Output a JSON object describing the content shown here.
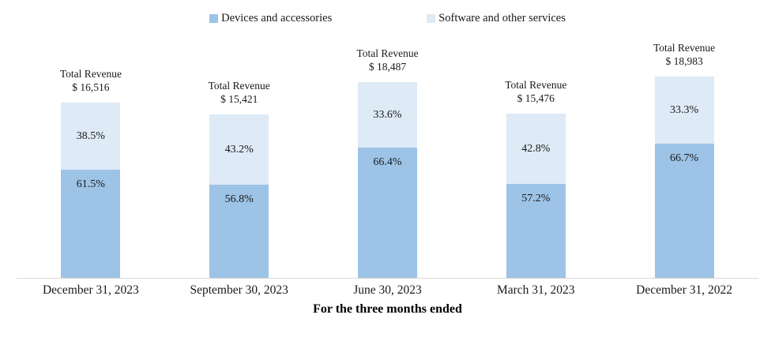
{
  "chart_data": {
    "type": "bar",
    "stacked": true,
    "stack_mode": "percent-labels-with-total-scaled-height",
    "xlabel": "For the three months ended",
    "ylabel": "",
    "grid": false,
    "legend_position": "top-center",
    "axis_line_color": "#d9d9d9",
    "categories": [
      "December 31, 2023",
      "September 30, 2023",
      "June 30, 2023",
      "March 31, 2023",
      "December 31, 2022"
    ],
    "totals": [
      16516,
      15421,
      18487,
      15476,
      18983
    ],
    "series": [
      {
        "name": "Devices and accessories",
        "color": "#9dc3e6",
        "values_pct": [
          61.5,
          56.8,
          66.4,
          57.2,
          66.7
        ]
      },
      {
        "name": "Software and other services",
        "color": "#deeaf6",
        "values_pct": [
          38.5,
          43.2,
          33.6,
          42.8,
          33.3
        ]
      }
    ]
  },
  "legend": {
    "items": [
      {
        "label": "Devices and accessories"
      },
      {
        "label": "Software and other services"
      }
    ]
  },
  "axis": {
    "title": "For the three months ended"
  },
  "bars": [
    {
      "category": "December 31, 2023",
      "total_line1": "Total Revenue",
      "total_line2": "$ 16,516",
      "pct_software": "38.5%",
      "pct_devices": "61.5%"
    },
    {
      "category": "September 30, 2023",
      "total_line1": "Total Revenue",
      "total_line2": "$ 15,421",
      "pct_software": "43.2%",
      "pct_devices": "56.8%"
    },
    {
      "category": "June 30, 2023",
      "total_line1": "Total Revenue",
      "total_line2": "$ 18,487",
      "pct_software": "33.6%",
      "pct_devices": "66.4%"
    },
    {
      "category": "March 31, 2023",
      "total_line1": "Total Revenue",
      "total_line2": "$ 15,476",
      "pct_software": "42.8%",
      "pct_devices": "57.2%"
    },
    {
      "category": "December 31, 2022",
      "total_line1": "Total Revenue",
      "total_line2": "$ 18,983",
      "pct_software": "33.3%",
      "pct_devices": "66.7%"
    }
  ]
}
